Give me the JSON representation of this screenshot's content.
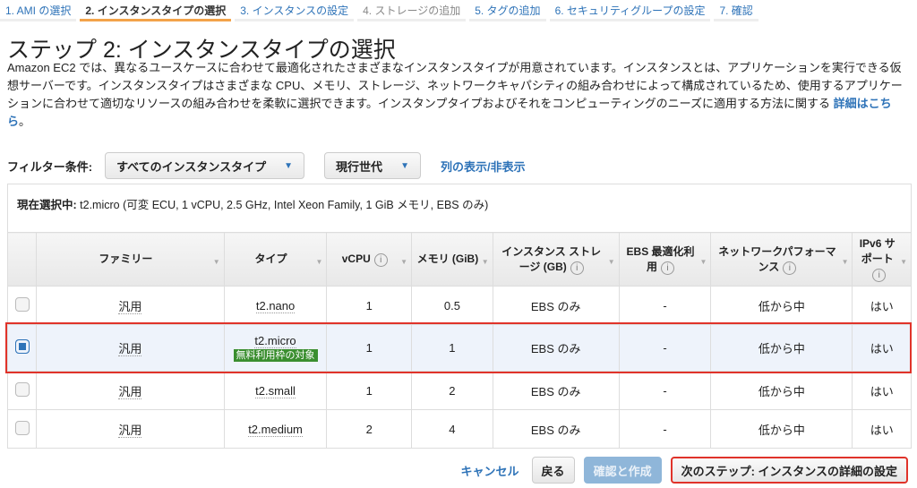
{
  "steps": [
    {
      "label": "1. AMI の選択",
      "state": "link"
    },
    {
      "label": "2. インスタンスタイプの選択",
      "state": "active"
    },
    {
      "label": "3. インスタンスの設定",
      "state": "link"
    },
    {
      "label": "4. ストレージの追加",
      "state": "disabled"
    },
    {
      "label": "5. タグの追加",
      "state": "link"
    },
    {
      "label": "6. セキュリティグループの設定",
      "state": "link"
    },
    {
      "label": "7. 確認",
      "state": "link"
    }
  ],
  "page_title": "ステップ 2: インスタンスタイプの選択",
  "description": "Amazon EC2 では、異なるユースケースに合わせて最適化されたさまざまなインスタンスタイプが用意されています。インスタンスとは、アプリケーションを実行できる仮想サーバーです。インスタンスタイプはさまざまな CPU、メモリ、ストレージ、ネットワークキャパシティの組み合わせによって構成されているため、使用するアプリケーションに合わせて適切なリソースの組み合わせを柔軟に選択できます。インスタンプタイプおよびそれをコンピューティングのニーズに適用する方法に関する",
  "description_link": "詳細はこちら",
  "description_end": "。",
  "filter": {
    "label": "フィルター条件:",
    "type_select": "すべてのインスタンスタイプ",
    "generation_select": "現行世代",
    "columns_link": "列の表示/非表示"
  },
  "current_selection": {
    "label": "現在選択中:",
    "value": " t2.micro (可変 ECU, 1 vCPU, 2.5 GHz, Intel Xeon Family, 1 GiB メモリ, EBS のみ)"
  },
  "table": {
    "headers": [
      "ファミリー",
      "タイプ",
      "vCPU",
      "メモリ (GiB)",
      "インスタンス ストレージ (GB)",
      "EBS 最適化利用",
      "ネットワークパフォーマンス",
      "IPv6 サポート"
    ],
    "rows": [
      {
        "family": "汎用",
        "type": "t2.nano",
        "vcpu": "1",
        "memory": "0.5",
        "storage": "EBS のみ",
        "ebs": "-",
        "network": "低から中",
        "ipv6": "はい",
        "selected": false
      },
      {
        "family": "汎用",
        "type": "t2.micro",
        "badge": "無料利用枠の対象",
        "vcpu": "1",
        "memory": "1",
        "storage": "EBS のみ",
        "ebs": "-",
        "network": "低から中",
        "ipv6": "はい",
        "selected": true
      },
      {
        "family": "汎用",
        "type": "t2.small",
        "vcpu": "1",
        "memory": "2",
        "storage": "EBS のみ",
        "ebs": "-",
        "network": "低から中",
        "ipv6": "はい",
        "selected": false
      },
      {
        "family": "汎用",
        "type": "t2.medium",
        "vcpu": "2",
        "memory": "4",
        "storage": "EBS のみ",
        "ebs": "-",
        "network": "低から中",
        "ipv6": "はい",
        "selected": false
      }
    ]
  },
  "footer": {
    "cancel": "キャンセル",
    "back": "戻る",
    "review": "確認と作成",
    "next": "次のステップ: インスタンスの詳細の設定"
  },
  "colors": {
    "accent": "#2e73b8",
    "active_tab": "#f3a34a",
    "highlight": "#e0332a",
    "badge": "#3a8e2f"
  }
}
